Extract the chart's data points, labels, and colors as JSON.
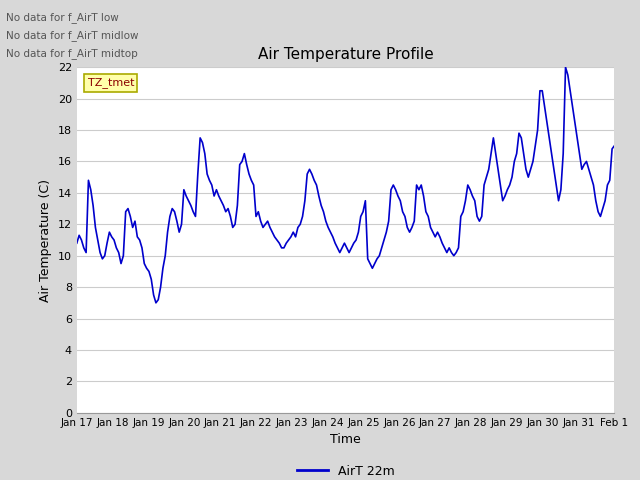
{
  "title": "Air Temperature Profile",
  "xlabel": "Time",
  "ylabel": "Air Temperature (C)",
  "ylim": [
    0,
    22
  ],
  "yticks": [
    0,
    2,
    4,
    6,
    8,
    10,
    12,
    14,
    16,
    18,
    20,
    22
  ],
  "line_color": "#0000cc",
  "line_width": 1.2,
  "figure_bg_color": "#d8d8d8",
  "plot_bg_color": "#ffffff",
  "grid_color": "#cccccc",
  "legend_label": "AirT 22m",
  "annotations": [
    "No data for f_AirT low",
    "No data for f_AirT midlow",
    "No data for f_AirT midtop"
  ],
  "tz_label": "TZ_tmet",
  "x_tick_labels": [
    "Jan 17",
    "Jan 18",
    "Jan 19",
    "Jan 20",
    "Jan 21",
    "Jan 22",
    "Jan 23",
    "Jan 24",
    "Jan 25",
    "Jan 26",
    "Jan 27",
    "Jan 28",
    "Jan 29",
    "Jan 30",
    "Jan 31",
    "Feb 1"
  ],
  "y_data": [
    10.8,
    11.3,
    11.0,
    10.5,
    10.2,
    14.8,
    14.2,
    13.2,
    11.8,
    11.0,
    10.2,
    9.8,
    10.0,
    10.8,
    11.5,
    11.2,
    11.0,
    10.5,
    10.2,
    9.5,
    10.0,
    12.8,
    13.0,
    12.5,
    11.8,
    12.2,
    11.2,
    11.0,
    10.5,
    9.5,
    9.2,
    9.0,
    8.5,
    7.5,
    7.0,
    7.2,
    8.0,
    9.2,
    10.0,
    11.5,
    12.5,
    13.0,
    12.8,
    12.2,
    11.5,
    12.0,
    14.2,
    13.8,
    13.5,
    13.2,
    12.8,
    12.5,
    15.2,
    17.5,
    17.2,
    16.5,
    15.2,
    14.8,
    14.5,
    13.8,
    14.2,
    13.8,
    13.5,
    13.2,
    12.8,
    13.0,
    12.5,
    11.8,
    12.0,
    13.2,
    15.8,
    16.0,
    16.5,
    15.8,
    15.2,
    14.8,
    14.5,
    12.5,
    12.8,
    12.2,
    11.8,
    12.0,
    12.2,
    11.8,
    11.5,
    11.2,
    11.0,
    10.8,
    10.5,
    10.5,
    10.8,
    11.0,
    11.2,
    11.5,
    11.2,
    11.8,
    12.0,
    12.5,
    13.5,
    15.2,
    15.5,
    15.2,
    14.8,
    14.5,
    13.8,
    13.2,
    12.8,
    12.2,
    11.8,
    11.5,
    11.2,
    10.8,
    10.5,
    10.2,
    10.5,
    10.8,
    10.5,
    10.2,
    10.5,
    10.8,
    11.0,
    11.5,
    12.5,
    12.8,
    13.5,
    9.8,
    9.5,
    9.2,
    9.5,
    9.8,
    10.0,
    10.5,
    11.0,
    11.5,
    12.2,
    14.2,
    14.5,
    14.2,
    13.8,
    13.5,
    12.8,
    12.5,
    11.8,
    11.5,
    11.8,
    12.2,
    14.5,
    14.2,
    14.5,
    13.8,
    12.8,
    12.5,
    11.8,
    11.5,
    11.2,
    11.5,
    11.2,
    10.8,
    10.5,
    10.2,
    10.5,
    10.2,
    10.0,
    10.2,
    10.5,
    12.5,
    12.8,
    13.5,
    14.5,
    14.2,
    13.8,
    13.5,
    12.5,
    12.2,
    12.5,
    14.5,
    15.0,
    15.5,
    16.5,
    17.5,
    16.5,
    15.5,
    14.5,
    13.5,
    13.8,
    14.2,
    14.5,
    15.0,
    16.0,
    16.5,
    17.8,
    17.5,
    16.5,
    15.5,
    15.0,
    15.5,
    16.0,
    17.0,
    18.0,
    20.5,
    20.5,
    19.5,
    18.5,
    17.5,
    16.5,
    15.5,
    14.5,
    13.5,
    14.2,
    16.5,
    22.0,
    21.5,
    20.5,
    19.5,
    18.5,
    17.5,
    16.5,
    15.5,
    15.8,
    16.0,
    15.5,
    15.0,
    14.5,
    13.5,
    12.8,
    12.5,
    13.0,
    13.5,
    14.5,
    14.8,
    16.8,
    17.0
  ]
}
